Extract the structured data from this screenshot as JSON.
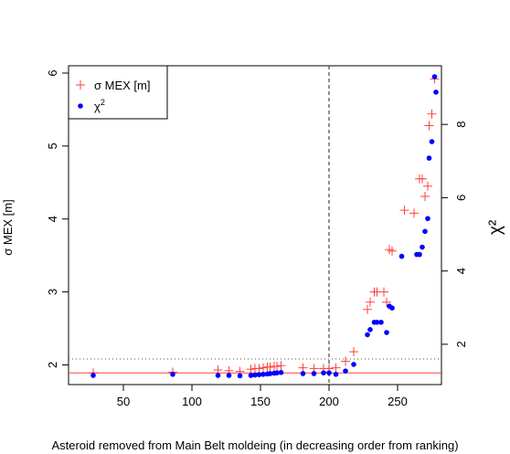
{
  "chart_data": {
    "type": "scatter",
    "title": "",
    "xlabel": "Asteroid removed from Main Belt moldeing (in decreasing order from ranking)",
    "ylabel_left": "σ MEX [m]",
    "ylabel_right": "χ²",
    "xlim": [
      10,
      282
    ],
    "ylim_left": [
      1.73,
      6.1
    ],
    "ylim_right": [
      0.9,
      9.6
    ],
    "x_ticks": [
      50,
      100,
      150,
      200,
      250
    ],
    "y_left_ticks": [
      2,
      3,
      4,
      5,
      6
    ],
    "y_right_ticks": [
      2,
      4,
      6,
      8
    ],
    "reference_lines": {
      "vertical_dashed_x": 200,
      "horizontal_dotted_y_left": 2.08,
      "horizontal_solid_red_y_left": 1.89
    },
    "legend": {
      "position": "top-left",
      "entries": [
        {
          "label": "σ MEX [m]",
          "marker": "plus",
          "color": "#ff4040"
        },
        {
          "label": "χ",
          "superscript": "2",
          "marker": "dot",
          "color": "#0000ff"
        }
      ]
    },
    "series": [
      {
        "name": "σ MEX [m]",
        "axis": "left",
        "color": "#ff4040",
        "marker": "plus",
        "x": [
          28,
          86,
          119,
          127,
          135,
          143,
          146,
          149,
          152,
          155,
          157,
          160,
          162,
          165,
          181,
          189,
          196,
          200,
          205,
          212,
          218,
          228,
          230,
          233,
          235,
          240,
          242,
          244,
          246,
          255,
          262,
          266,
          268,
          270,
          272,
          273,
          275,
          277
        ],
        "y": [
          1.89,
          1.9,
          1.93,
          1.92,
          1.91,
          1.94,
          1.95,
          1.95,
          1.96,
          1.97,
          1.97,
          1.98,
          1.98,
          1.99,
          1.96,
          1.95,
          1.95,
          1.95,
          1.96,
          2.05,
          2.18,
          2.76,
          2.86,
          3.0,
          3.0,
          3.0,
          2.86,
          3.58,
          3.56,
          4.12,
          4.08,
          4.55,
          4.55,
          4.31,
          4.45,
          5.28,
          5.44,
          5.92
        ]
      },
      {
        "name": "χ²",
        "axis": "right",
        "color": "#0000ff",
        "marker": "dot",
        "x": [
          28,
          86,
          119,
          127,
          135,
          143,
          146,
          149,
          152,
          155,
          157,
          160,
          162,
          165,
          181,
          189,
          196,
          200,
          205,
          212,
          218,
          228,
          230,
          233,
          235,
          238,
          242,
          244,
          246,
          253,
          264,
          266,
          268,
          270,
          272,
          273,
          275,
          277,
          278
        ],
        "y": [
          1.15,
          1.18,
          1.15,
          1.15,
          1.14,
          1.15,
          1.16,
          1.17,
          1.18,
          1.19,
          1.2,
          1.21,
          1.22,
          1.23,
          1.2,
          1.2,
          1.22,
          1.22,
          1.18,
          1.27,
          1.45,
          2.26,
          2.4,
          2.6,
          2.6,
          2.6,
          2.32,
          3.04,
          2.99,
          4.4,
          4.45,
          4.45,
          4.65,
          5.08,
          5.43,
          7.08,
          7.53,
          9.3,
          8.88
        ]
      }
    ]
  }
}
